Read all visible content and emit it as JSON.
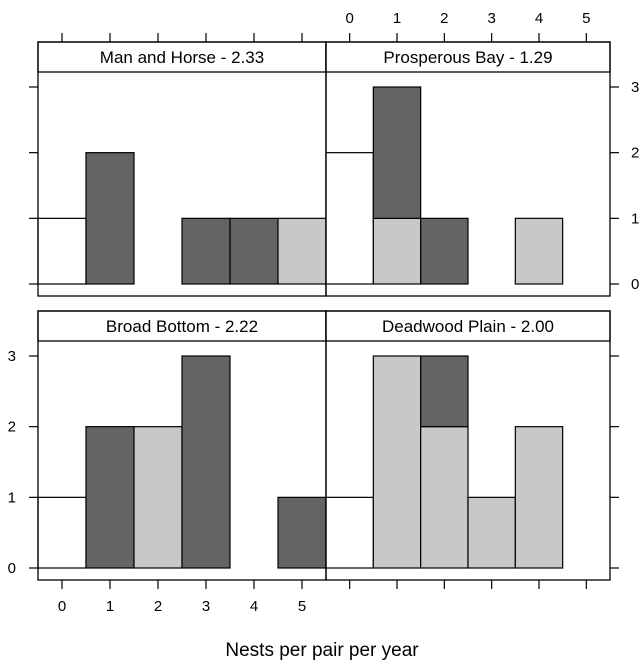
{
  "colors": {
    "white": "#ffffff",
    "dark": "#646464",
    "light": "#c8c8c8"
  },
  "xlabel": "Nests per pair per year",
  "chart_data": [
    {
      "type": "bar",
      "title": "Man and Horse - 2.33",
      "xlabel": "Nests per pair per year",
      "ylabel": "",
      "x_ticks": [
        "0",
        "1",
        "2",
        "3",
        "4",
        "5"
      ],
      "y_ticks": [
        "0",
        "1",
        "2",
        "3"
      ],
      "xlim": [
        -0.5,
        5.5
      ],
      "ylim": [
        0,
        3
      ],
      "stacked": true,
      "bars": [
        {
          "x": 0,
          "segments": [
            {
              "value": 1,
              "fill": "white"
            }
          ]
        },
        {
          "x": 1,
          "segments": [
            {
              "value": 2,
              "fill": "dark"
            }
          ]
        },
        {
          "x": 3,
          "segments": [
            {
              "value": 1,
              "fill": "dark"
            }
          ]
        },
        {
          "x": 4,
          "segments": [
            {
              "value": 1,
              "fill": "dark"
            }
          ]
        },
        {
          "x": 5,
          "segments": [
            {
              "value": 1,
              "fill": "light"
            }
          ]
        }
      ]
    },
    {
      "type": "bar",
      "title": "Prosperous Bay - 1.29",
      "xlabel": "Nests per pair per year",
      "ylabel": "",
      "x_ticks": [
        "0",
        "1",
        "2",
        "3",
        "4",
        "5"
      ],
      "y_ticks": [
        "0",
        "1",
        "2",
        "3"
      ],
      "xlim": [
        -0.5,
        5.5
      ],
      "ylim": [
        0,
        3
      ],
      "stacked": true,
      "bars": [
        {
          "x": 0,
          "segments": [
            {
              "value": 2,
              "fill": "white"
            }
          ]
        },
        {
          "x": 1,
          "segments": [
            {
              "value": 1,
              "fill": "light"
            },
            {
              "value": 2,
              "fill": "dark"
            }
          ]
        },
        {
          "x": 2,
          "segments": [
            {
              "value": 1,
              "fill": "dark"
            }
          ]
        },
        {
          "x": 4,
          "segments": [
            {
              "value": 1,
              "fill": "light"
            }
          ]
        }
      ]
    },
    {
      "type": "bar",
      "title": "Broad Bottom - 2.22",
      "xlabel": "Nests per pair per year",
      "ylabel": "",
      "x_ticks": [
        "0",
        "1",
        "2",
        "3",
        "4",
        "5"
      ],
      "y_ticks": [
        "0",
        "1",
        "2",
        "3"
      ],
      "xlim": [
        -0.5,
        5.5
      ],
      "ylim": [
        0,
        3
      ],
      "stacked": true,
      "bars": [
        {
          "x": 0,
          "segments": [
            {
              "value": 1,
              "fill": "white"
            }
          ]
        },
        {
          "x": 1,
          "segments": [
            {
              "value": 2,
              "fill": "dark"
            }
          ]
        },
        {
          "x": 2,
          "segments": [
            {
              "value": 2,
              "fill": "light"
            }
          ]
        },
        {
          "x": 3,
          "segments": [
            {
              "value": 3,
              "fill": "dark"
            }
          ]
        },
        {
          "x": 5,
          "segments": [
            {
              "value": 1,
              "fill": "dark"
            }
          ]
        }
      ]
    },
    {
      "type": "bar",
      "title": "Deadwood Plain - 2.00",
      "xlabel": "Nests per pair per year",
      "ylabel": "",
      "x_ticks": [
        "0",
        "1",
        "2",
        "3",
        "4",
        "5"
      ],
      "y_ticks": [
        "0",
        "1",
        "2",
        "3"
      ],
      "xlim": [
        -0.5,
        5.5
      ],
      "ylim": [
        0,
        3
      ],
      "stacked": true,
      "bars": [
        {
          "x": 0,
          "segments": [
            {
              "value": 1,
              "fill": "white"
            }
          ]
        },
        {
          "x": 1,
          "segments": [
            {
              "value": 3,
              "fill": "light"
            }
          ]
        },
        {
          "x": 2,
          "segments": [
            {
              "value": 2,
              "fill": "light"
            },
            {
              "value": 1,
              "fill": "dark"
            }
          ]
        },
        {
          "x": 3,
          "segments": [
            {
              "value": 1,
              "fill": "light"
            }
          ]
        },
        {
          "x": 4,
          "segments": [
            {
              "value": 2,
              "fill": "light"
            }
          ]
        }
      ]
    }
  ]
}
